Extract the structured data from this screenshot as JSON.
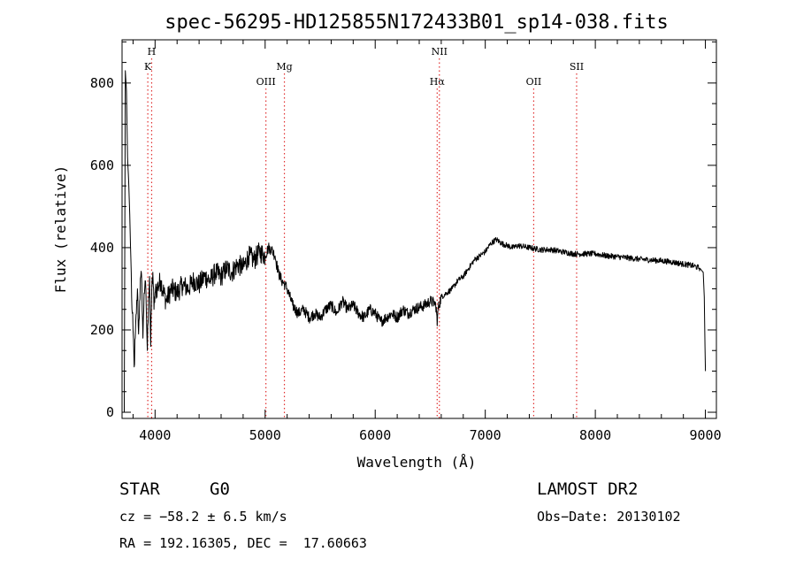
{
  "chart_data": {
    "type": "line",
    "title": "spec-56295-HD125855N172433B01_sp14-038.fits",
    "xlabel": "Wavelength (Å)",
    "ylabel": "Flux (relative)",
    "xlim": [
      3700,
      9100
    ],
    "ylim": [
      -15,
      905
    ],
    "xticks": [
      4000,
      5000,
      6000,
      7000,
      8000,
      9000
    ],
    "yticks": [
      0,
      200,
      400,
      600,
      800
    ],
    "grid": false,
    "series": [
      {
        "color": "#000000",
        "x": [
          3720,
          3730,
          3740,
          3750,
          3760,
          3770,
          3780,
          3790,
          3800,
          3810,
          3820,
          3830,
          3840,
          3850,
          3860,
          3870,
          3880,
          3890,
          3900,
          3910,
          3920,
          3930,
          3940,
          3950,
          3960,
          3970,
          3980,
          3990,
          4000,
          4050,
          4100,
          4150,
          4200,
          4250,
          4300,
          4350,
          4400,
          4450,
          4500,
          4550,
          4600,
          4650,
          4700,
          4750,
          4800,
          4850,
          4900,
          4950,
          5000,
          5030,
          5060,
          5090,
          5120,
          5150,
          5180,
          5200,
          5250,
          5300,
          5350,
          5400,
          5450,
          5500,
          5550,
          5600,
          5650,
          5700,
          5750,
          5800,
          5850,
          5900,
          5950,
          6000,
          6050,
          6100,
          6150,
          6200,
          6250,
          6300,
          6350,
          6400,
          6450,
          6500,
          6540,
          6555,
          6563,
          6570,
          6600,
          6650,
          6700,
          6750,
          6800,
          6850,
          6900,
          6950,
          7000,
          7050,
          7100,
          7150,
          7200,
          7250,
          7300,
          7400,
          7500,
          7600,
          7700,
          7800,
          7900,
          8000,
          8100,
          8200,
          8300,
          8400,
          8500,
          8600,
          8700,
          8800,
          8850,
          8900,
          8950,
          8980,
          8990,
          9000
        ],
        "y": [
          0,
          830,
          780,
          620,
          560,
          480,
          370,
          250,
          200,
          110,
          180,
          240,
          300,
          190,
          270,
          330,
          310,
          180,
          290,
          320,
          250,
          150,
          280,
          330,
          160,
          300,
          340,
          250,
          290,
          320,
          270,
          300,
          290,
          310,
          300,
          320,
          310,
          330,
          320,
          340,
          330,
          350,
          340,
          360,
          350,
          380,
          370,
          390,
          380,
          400,
          395,
          380,
          340,
          320,
          310,
          300,
          260,
          240,
          250,
          230,
          240,
          230,
          250,
          260,
          240,
          270,
          250,
          260,
          240,
          230,
          250,
          240,
          220,
          230,
          240,
          230,
          250,
          240,
          250,
          255,
          260,
          270,
          265,
          255,
          210,
          250,
          280,
          290,
          300,
          320,
          330,
          350,
          370,
          380,
          390,
          410,
          420,
          410,
          405,
          400,
          405,
          400,
          395,
          395,
          390,
          385,
          385,
          385,
          380,
          378,
          375,
          372,
          370,
          368,
          365,
          360,
          358,
          355,
          350,
          340,
          280,
          100
        ]
      }
    ],
    "line_markers": [
      {
        "wavelength": 3934,
        "label": "K",
        "row": 1
      },
      {
        "wavelength": 3969,
        "label": "H",
        "row": 0
      },
      {
        "wavelength": 5007,
        "label": "OIII",
        "row": 3
      },
      {
        "wavelength": 5175,
        "label": "Mg",
        "row": 2
      },
      {
        "wavelength": 6563,
        "label": "Hα",
        "row": 3
      },
      {
        "wavelength": 6583,
        "label": "NII",
        "row": 0
      },
      {
        "wavelength": 7440,
        "label": "OII",
        "row": 3
      },
      {
        "wavelength": 7830,
        "label": "SII",
        "row": 2
      }
    ],
    "marker_color": "#e03030"
  },
  "info": {
    "object_class": "STAR",
    "subclass": "G0",
    "survey": "LAMOST DR2",
    "redshift": "cz = −58.2 ± 6.5 km/s",
    "obs_date": "Obs−Date: 20130102",
    "coords": "RA = 192.16305, DEC =  17.60663"
  }
}
